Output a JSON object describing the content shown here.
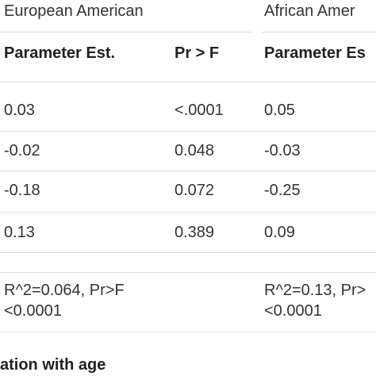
{
  "table": {
    "groups": [
      "European American",
      "African Amer"
    ],
    "header": [
      "Parameter Est.",
      "Pr > F",
      "Parameter Es"
    ],
    "rows": [
      [
        "0.03",
        "<.0001",
        "0.05"
      ],
      [
        "-0.02",
        "0.048",
        "-0.03"
      ],
      [
        "-0.18",
        "0.072",
        "-0.25"
      ],
      [
        "0.13",
        "0.389",
        "0.09"
      ]
    ],
    "footer": [
      [
        "R^2=0.064, Pr>F",
        "<0.0001"
      ],
      [
        "R^2=0.13, Pr>",
        "<0.0001"
      ]
    ]
  },
  "caption": "ation with age"
}
